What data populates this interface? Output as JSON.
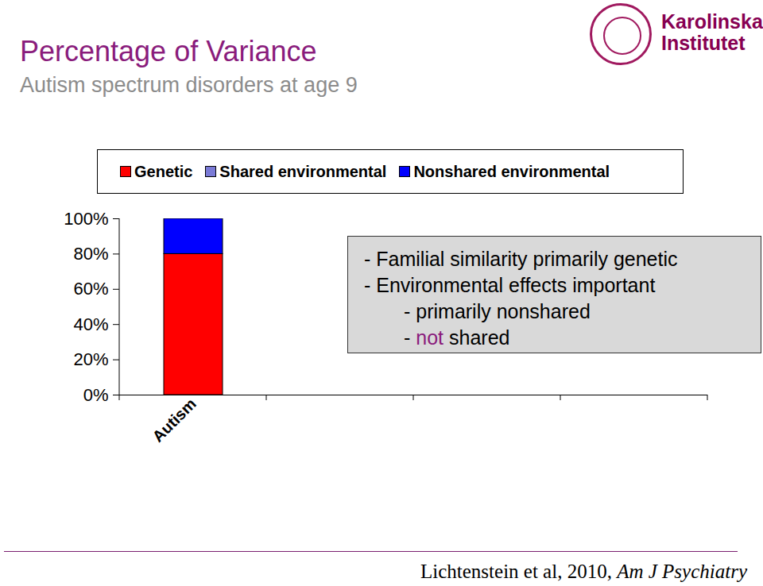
{
  "chart_data": {
    "type": "bar",
    "title": "Percentage of Variance",
    "subtitle": "Autism spectrum disorders at age 9",
    "categories": [
      "Autism",
      null,
      null,
      null
    ],
    "series": [
      {
        "name": "Genetic",
        "color": "#ff0000",
        "values": [
          80,
          null,
          null,
          null
        ]
      },
      {
        "name": "Shared environmental",
        "color": "#7a7ad6",
        "values": [
          0,
          null,
          null,
          null
        ]
      },
      {
        "name": "Nonshared environmental",
        "color": "#0000ff",
        "values": [
          20,
          null,
          null,
          null
        ]
      }
    ],
    "stacked": true,
    "ylim": [
      0,
      100
    ],
    "yticks": [
      {
        "value": 0,
        "label": "0%"
      },
      {
        "value": 20,
        "label": "20%"
      },
      {
        "value": 40,
        "label": "40%"
      },
      {
        "value": 60,
        "label": "60%"
      },
      {
        "value": 80,
        "label": "80%"
      },
      {
        "value": 100,
        "label": "100%"
      }
    ],
    "grid": false,
    "legend": "top",
    "annotations": [
      {
        "text": "- Familial similarity primarily genetic"
      },
      {
        "text": "- Environmental effects important",
        "items": [
          {
            "text": "- primarily nonshared"
          },
          {
            "text": "- not shared",
            "emphasis": "not"
          }
        ]
      }
    ],
    "source": {
      "text": "Lichtenstein et al, 2010,",
      "journal": "Am J Psychiatry"
    }
  },
  "logo": [
    "Karolinska",
    "Institutet"
  ]
}
